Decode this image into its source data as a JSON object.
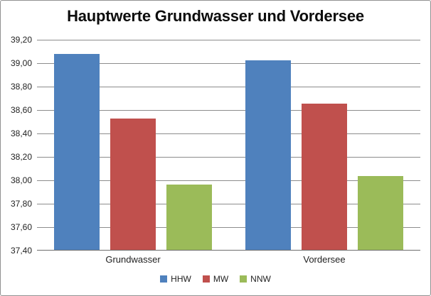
{
  "chart_data": {
    "type": "bar",
    "title": "Hauptwerte Grundwasser und Vordersee",
    "categories": [
      "Grundwasser",
      "Vordersee"
    ],
    "series": [
      {
        "name": "HHW",
        "color": "#4F81BD",
        "values": [
          39.07,
          39.02
        ]
      },
      {
        "name": "MW",
        "color": "#C0504D",
        "values": [
          38.52,
          38.65
        ]
      },
      {
        "name": "NNW",
        "color": "#9BBB59",
        "values": [
          37.96,
          38.03
        ]
      }
    ],
    "xlabel": "",
    "ylabel": "",
    "ylim": [
      37.4,
      39.2
    ],
    "ytick_step": 0.2,
    "ytick_labels": [
      "39,20",
      "39,00",
      "38,80",
      "38,60",
      "38,40",
      "38,20",
      "38,00",
      "37,80",
      "37,60",
      "37,40"
    ],
    "grid": true,
    "legend_position": "bottom",
    "decimal_separator": ","
  },
  "style_colors": {
    "gridline": "#8c8c8c",
    "axis_line": "#6d6d6d",
    "frame_border": "#919191",
    "text": "#1f1f1f"
  }
}
